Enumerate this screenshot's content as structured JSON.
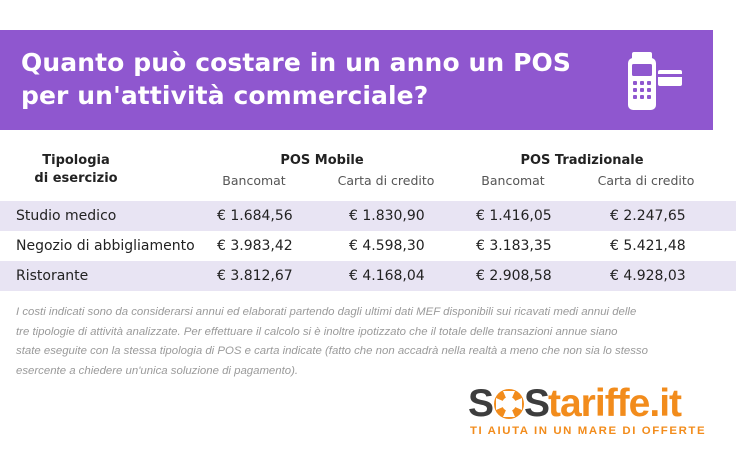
{
  "header": {
    "title_line1": "Quanto può costare in un anno un POS",
    "title_line2": "per un'attività commerciale?",
    "icon": "pos-terminal-icon",
    "bg_color": "#8f57cf"
  },
  "table": {
    "col_type_line1": "Tipologia",
    "col_type_line2": "di esercizio",
    "group_mobile": "POS Mobile",
    "group_traditional": "POS Tradizionale",
    "sub_bancomat_1": "Bancomat",
    "sub_credit_1": "Carta di credito",
    "sub_bancomat_2": "Bancomat",
    "sub_credit_2": "Carta di credito",
    "rows": [
      {
        "type": "Studio medico",
        "mobile_bancomat": "€ 1.684,56",
        "mobile_credit": "€ 1.830,90",
        "trad_bancomat": "€ 1.416,05",
        "trad_credit": "€ 2.247,65"
      },
      {
        "type": "Negozio di abbigliamento",
        "mobile_bancomat": "€ 3.983,42",
        "mobile_credit": "€ 4.598,30",
        "trad_bancomat": "€ 3.183,35",
        "trad_credit": "€ 5.421,48"
      },
      {
        "type": "Ristorante",
        "mobile_bancomat": "€ 3.812,67",
        "mobile_credit": "€ 4.168,04",
        "trad_bancomat": "€ 2.908,58",
        "trad_credit": "€ 4.928,03"
      }
    ],
    "row_shade_color": "#e8e4f3"
  },
  "note": {
    "line1": "I costi indicati sono da considerarsi annui ed elaborati partendo dagli ultimi dati MEF disponibili sui ricavati medi annui delle",
    "line2": "tre tipologie di attività analizzate. Per effettuare il calcolo si è inoltre ipotizzato che il totale delle transazioni annue siano",
    "line3": "state eseguite con la stessa tipologia di POS e carta indicate (fatto che non accadrà nella realtà a meno che non sia lo stesso",
    "line4": "esercente a chiedere un'unica soluzione di pagamento)."
  },
  "logo": {
    "text": "SOStariffe.it",
    "tagline": "TI AIUTA IN UN MARE DI OFFERTE",
    "accent_color": "#f28c1c"
  }
}
